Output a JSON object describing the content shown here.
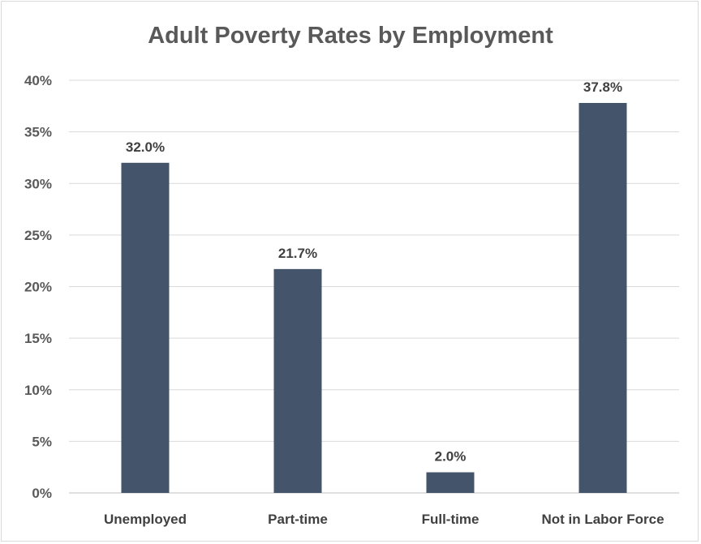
{
  "chart_data": {
    "type": "bar",
    "title": "Adult Poverty Rates by Employment",
    "categories": [
      "Unemployed",
      "Part-time",
      "Full-time",
      "Not in Labor Force"
    ],
    "values": [
      32.0,
      21.7,
      2.0,
      37.8
    ],
    "data_labels": [
      "32.0%",
      "21.7%",
      "2.0%",
      "37.8%"
    ],
    "y_ticks": [
      "0%",
      "5%",
      "10%",
      "15%",
      "20%",
      "25%",
      "30%",
      "35%",
      "40%"
    ],
    "ylim": [
      0,
      40
    ],
    "xlabel": "",
    "ylabel": "",
    "grid": true,
    "legend": "none",
    "bar_color": "#44546a"
  }
}
